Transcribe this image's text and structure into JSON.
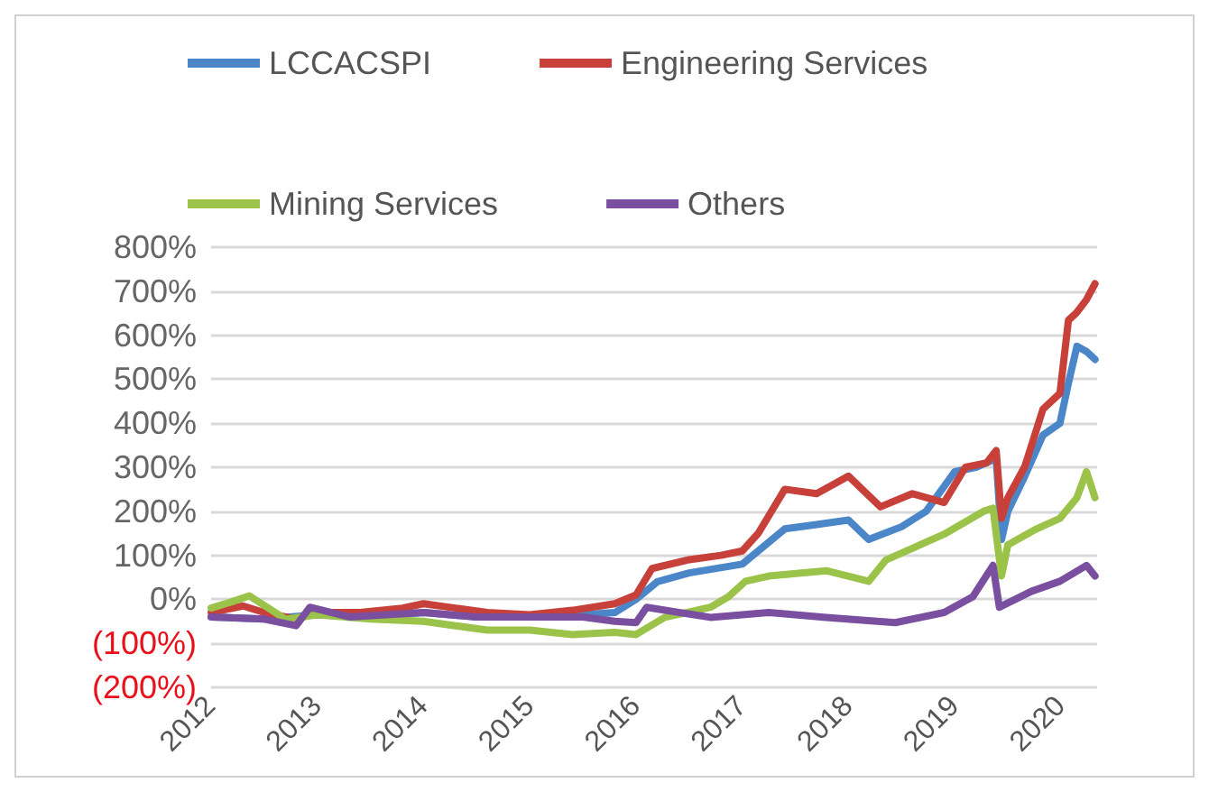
{
  "chart_data": {
    "type": "line",
    "legend": "top",
    "grid": "y",
    "line_style": "solid",
    "marker": "none",
    "xlim": [
      2012,
      2020.34
    ],
    "xticks": [
      2012,
      2013,
      2014,
      2015,
      2016,
      2017,
      2018,
      2019,
      2020
    ],
    "ylim": [
      -200,
      800
    ],
    "yticks": [
      {
        "value": -200,
        "label": "(200%)"
      },
      {
        "value": -100,
        "label": "(100%)"
      },
      {
        "value": 0,
        "label": "0%"
      },
      {
        "value": 100,
        "label": "100%"
      },
      {
        "value": 200,
        "label": "200%"
      },
      {
        "value": 300,
        "label": "300%"
      },
      {
        "value": 400,
        "label": "400%"
      },
      {
        "value": 500,
        "label": "500%"
      },
      {
        "value": 600,
        "label": "600%"
      },
      {
        "value": 700,
        "label": "700%"
      },
      {
        "value": 800,
        "label": "800%"
      }
    ],
    "series": [
      {
        "name": "LCCACSPI",
        "color": "#4a86c8",
        "x": [
          2012,
          2012.5,
          2013,
          2013.5,
          2014,
          2014.5,
          2015,
          2015.5,
          2015.8,
          2016,
          2016.2,
          2016.5,
          2017,
          2017.4,
          2017.7,
          2018,
          2018.19,
          2018.5,
          2018.73,
          2019,
          2019.2,
          2019.39,
          2019.44,
          2019.5,
          2019.66,
          2019.83,
          2019.99,
          2020.07,
          2020.15,
          2020.24,
          2020.32
        ],
        "values": [
          -40,
          -45,
          -35,
          -40,
          -30,
          -40,
          -40,
          -35,
          -30,
          0,
          40,
          60,
          80,
          160,
          170,
          180,
          136,
          165,
          200,
          290,
          300,
          320,
          136,
          200,
          280,
          373,
          400,
          491,
          575,
          563,
          545
        ]
      },
      {
        "name": "Engineering Services",
        "color": "#c8403a",
        "x": [
          2012,
          2012.3,
          2012.5,
          2012.8,
          2013,
          2013.4,
          2013.8,
          2014,
          2014.3,
          2014.6,
          2015,
          2015.4,
          2015.8,
          2016,
          2016.15,
          2016.5,
          2016.8,
          2017,
          2017.15,
          2017.4,
          2017.7,
          2018,
          2018.3,
          2018.6,
          2018.9,
          2019.1,
          2019.3,
          2019.39,
          2019.44,
          2019.5,
          2019.66,
          2019.83,
          2019.99,
          2020.07,
          2020.15,
          2020.24,
          2020.32
        ],
        "values": [
          -30,
          -15,
          -30,
          -45,
          -30,
          -30,
          -20,
          -10,
          -20,
          -30,
          -35,
          -25,
          -10,
          10,
          70,
          90,
          100,
          110,
          150,
          250,
          240,
          280,
          210,
          240,
          220,
          300,
          310,
          338,
          184,
          231,
          302,
          432,
          468,
          634,
          652,
          681,
          717
        ]
      },
      {
        "name": "Mining Services",
        "color": "#9bc34a",
        "x": [
          2012,
          2012.2,
          2012.36,
          2012.7,
          2013,
          2013.5,
          2014,
          2014.3,
          2014.6,
          2015,
          2015.4,
          2015.8,
          2016,
          2016.27,
          2016.7,
          2016.87,
          2017.03,
          2017.25,
          2017.79,
          2018.19,
          2018.35,
          2018.9,
          2019.28,
          2019.36,
          2019.44,
          2019.5,
          2019.77,
          2019.99,
          2020.15,
          2020.24,
          2020.32
        ],
        "values": [
          -20,
          -5,
          8,
          -45,
          -35,
          -45,
          -50,
          -60,
          -70,
          -70,
          -80,
          -75,
          -80,
          -41,
          -18,
          6,
          41,
          53,
          65,
          41,
          89,
          148,
          201,
          207,
          53,
          124,
          160,
          184,
          231,
          290,
          231
        ]
      },
      {
        "name": "Others",
        "color": "#7a4fa0",
        "x": [
          2012,
          2012.5,
          2012.8,
          2012.93,
          2013.3,
          2014,
          2014.5,
          2015,
          2015.5,
          2015.8,
          2016,
          2016.1,
          2016.7,
          2017.25,
          2017.79,
          2018.44,
          2018.9,
          2019.17,
          2019.36,
          2019.42,
          2019.72,
          2019.99,
          2020.24,
          2020.32
        ],
        "values": [
          -40,
          -45,
          -60,
          -18,
          -40,
          -30,
          -40,
          -40,
          -40,
          -50,
          -53,
          -18,
          -41,
          -30,
          -41,
          -53,
          -30,
          6,
          77,
          -18,
          18,
          41,
          77,
          53
        ]
      }
    ]
  }
}
